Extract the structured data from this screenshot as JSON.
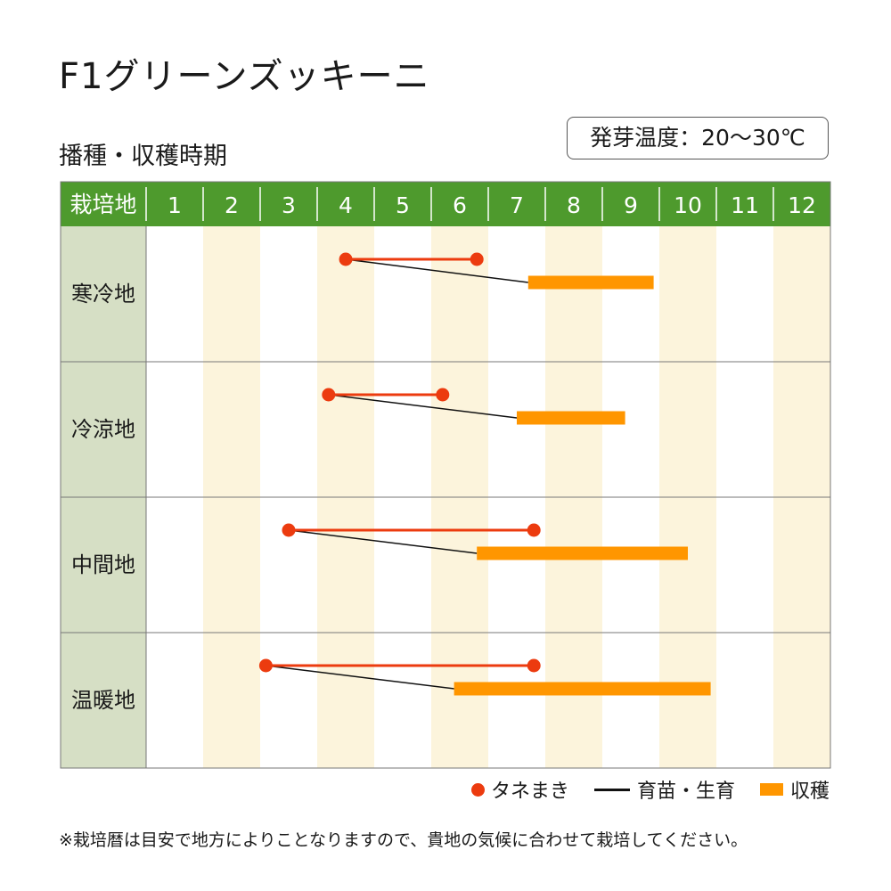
{
  "title": "F1グリーンズッキーニ",
  "subtitle": "播種・収穫時期",
  "germination_temp": "発芽温度：20～30℃",
  "legend": {
    "sowing": "タネまき",
    "seedling": "育苗・生育",
    "harvest": "収穫"
  },
  "footnote": "※栽培暦は目安で地方によりことなりますので、貴地の気候に合わせて栽培してください。",
  "colors": {
    "header_green": "#4e9a2d",
    "row_label_bg": "#d6dfc5",
    "stripe": "#fcf4dc",
    "sowing_red": "#ec3b0f",
    "harvest_orange": "#ff9600",
    "grid": "#777777"
  },
  "chart_data": {
    "type": "gantt",
    "header_label": "栽培地",
    "months": [
      "1",
      "2",
      "3",
      "4",
      "5",
      "6",
      "7",
      "8",
      "9",
      "10",
      "11",
      "12"
    ],
    "rows": [
      {
        "region": "寒冷地",
        "sowing_start": 4.5,
        "sowing_end": 6.8,
        "harvest_start": 7.7,
        "harvest_end": 9.9
      },
      {
        "region": "冷涼地",
        "sowing_start": 4.2,
        "sowing_end": 6.2,
        "harvest_start": 7.5,
        "harvest_end": 9.4
      },
      {
        "region": "中間地",
        "sowing_start": 3.5,
        "sowing_end": 7.8,
        "harvest_start": 6.8,
        "harvest_end": 10.5
      },
      {
        "region": "温暖地",
        "sowing_start": 3.1,
        "sowing_end": 7.8,
        "harvest_start": 6.4,
        "harvest_end": 10.9
      }
    ]
  }
}
